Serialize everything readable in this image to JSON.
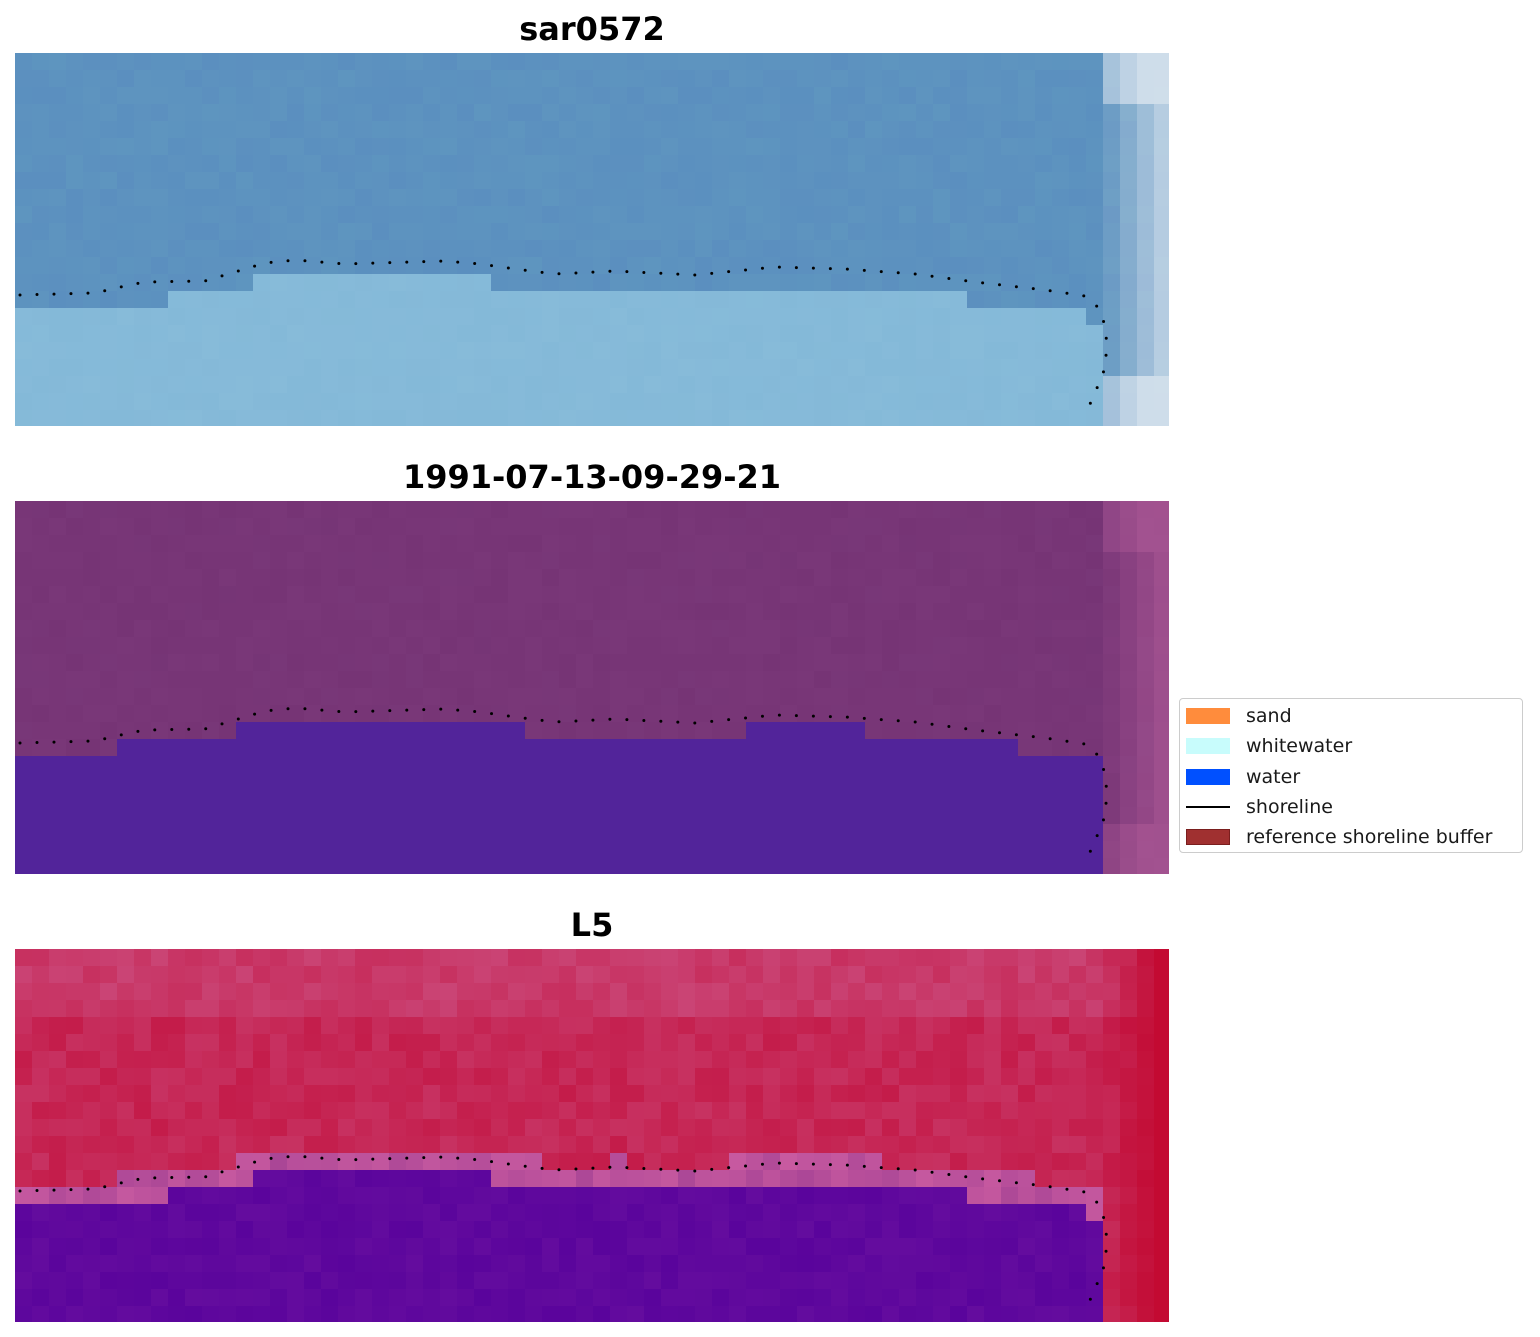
{
  "panels": [
    {
      "title": "sar0572",
      "palette": "sar"
    },
    {
      "title": "1991-07-13-09-29-21",
      "palette": "classified"
    },
    {
      "title": "L5",
      "palette": "l5"
    }
  ],
  "legend": {
    "items": [
      {
        "label": "sand",
        "kind": "patch",
        "color": "#ff8c3c"
      },
      {
        "label": "whitewater",
        "kind": "patch",
        "color": "#c8fcfc"
      },
      {
        "label": "water",
        "kind": "patch",
        "color": "#0050ff"
      },
      {
        "label": "shoreline",
        "kind": "line",
        "color": "#000000"
      },
      {
        "label": "reference shoreline buffer",
        "kind": "patch",
        "color": "#a03030",
        "edge": "#7a1e1e"
      }
    ]
  },
  "colors": {
    "sar_top": "#5b8fbf",
    "sar_bottom": "#84b9d8",
    "class_top": "#763475",
    "class_water": "#52249a",
    "l5_top": "#c41c4a",
    "l5_bottom": "#5a049c",
    "shoreline_dots": "#000000"
  }
}
